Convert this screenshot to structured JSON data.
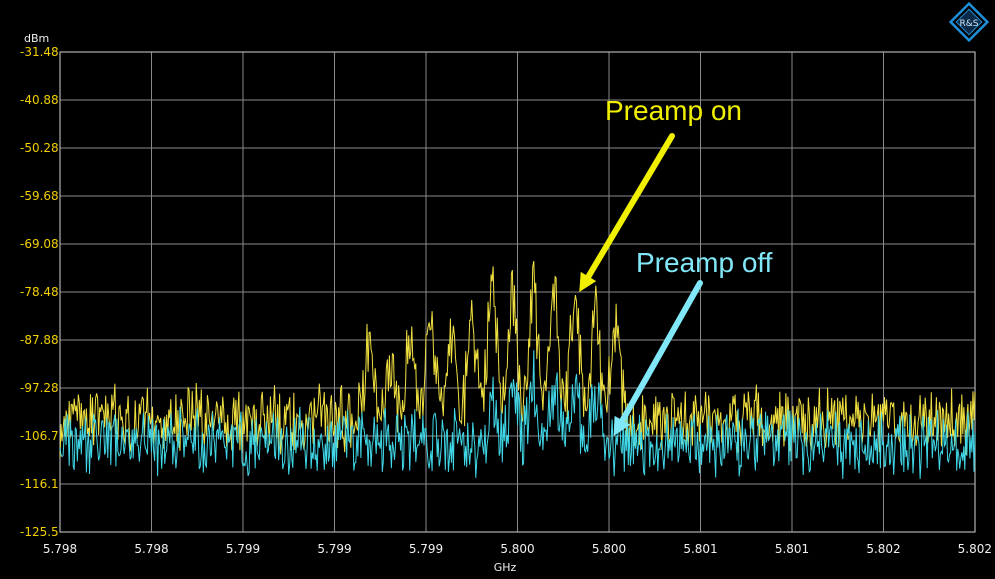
{
  "chart_data": {
    "type": "line",
    "title": "",
    "y_unit": "dBm",
    "x_unit": "GHz",
    "y_ticks": [
      "-31.48",
      "-40.88",
      "-50.28",
      "-59.68",
      "-69.08",
      "-78.48",
      "-87.88",
      "-97.28",
      "-106.7",
      "-116.1",
      "-125.5"
    ],
    "x_ticks": [
      "5.798",
      "5.798",
      "5.799",
      "5.799",
      "5.799",
      "5.800",
      "5.800",
      "5.801",
      "5.801",
      "5.802",
      "5.802"
    ],
    "xlim": [
      5.798,
      5.802
    ],
    "ylim": [
      -125.5,
      -31.48
    ],
    "grid": true,
    "series": [
      {
        "name": "Preamp on",
        "color": "#f0e040",
        "noise_floor": -103.5,
        "peaks": [
          {
            "x": 5.79935,
            "y": -87.5
          },
          {
            "x": 5.79944,
            "y": -93.0
          },
          {
            "x": 5.79953,
            "y": -87.0
          },
          {
            "x": 5.79962,
            "y": -84.0
          },
          {
            "x": 5.79971,
            "y": -87.0
          },
          {
            "x": 5.7998,
            "y": -80.0
          },
          {
            "x": 5.79989,
            "y": -76.0
          },
          {
            "x": 5.79998,
            "y": -76.5
          },
          {
            "x": 5.80007,
            "y": -76.0
          },
          {
            "x": 5.80016,
            "y": -76.5
          },
          {
            "x": 5.80025,
            "y": -77.5
          },
          {
            "x": 5.80034,
            "y": -80.0
          },
          {
            "x": 5.80043,
            "y": -84.0
          }
        ]
      },
      {
        "name": "Preamp off",
        "color": "#40d8e8",
        "noise_floor": -108.0,
        "peaks": [
          {
            "x": 5.79989,
            "y": -99.0
          },
          {
            "x": 5.79998,
            "y": -97.0
          },
          {
            "x": 5.80007,
            "y": -95.5
          },
          {
            "x": 5.80016,
            "y": -95.0
          },
          {
            "x": 5.80025,
            "y": -95.5
          },
          {
            "x": 5.80034,
            "y": -98.0
          }
        ]
      }
    ],
    "annotations": [
      {
        "text": "Preamp on",
        "color": "#f0f000",
        "arrow_to": {
          "x": 5.80027,
          "y": -78.48
        }
      },
      {
        "text": "Preamp off",
        "color": "#80e8f8",
        "arrow_to": {
          "x": 5.80042,
          "y": -106.7
        }
      }
    ]
  },
  "logo": {
    "name": "rohde-schwarz-logo",
    "color": "#1e8fd8",
    "text": "R&S"
  }
}
